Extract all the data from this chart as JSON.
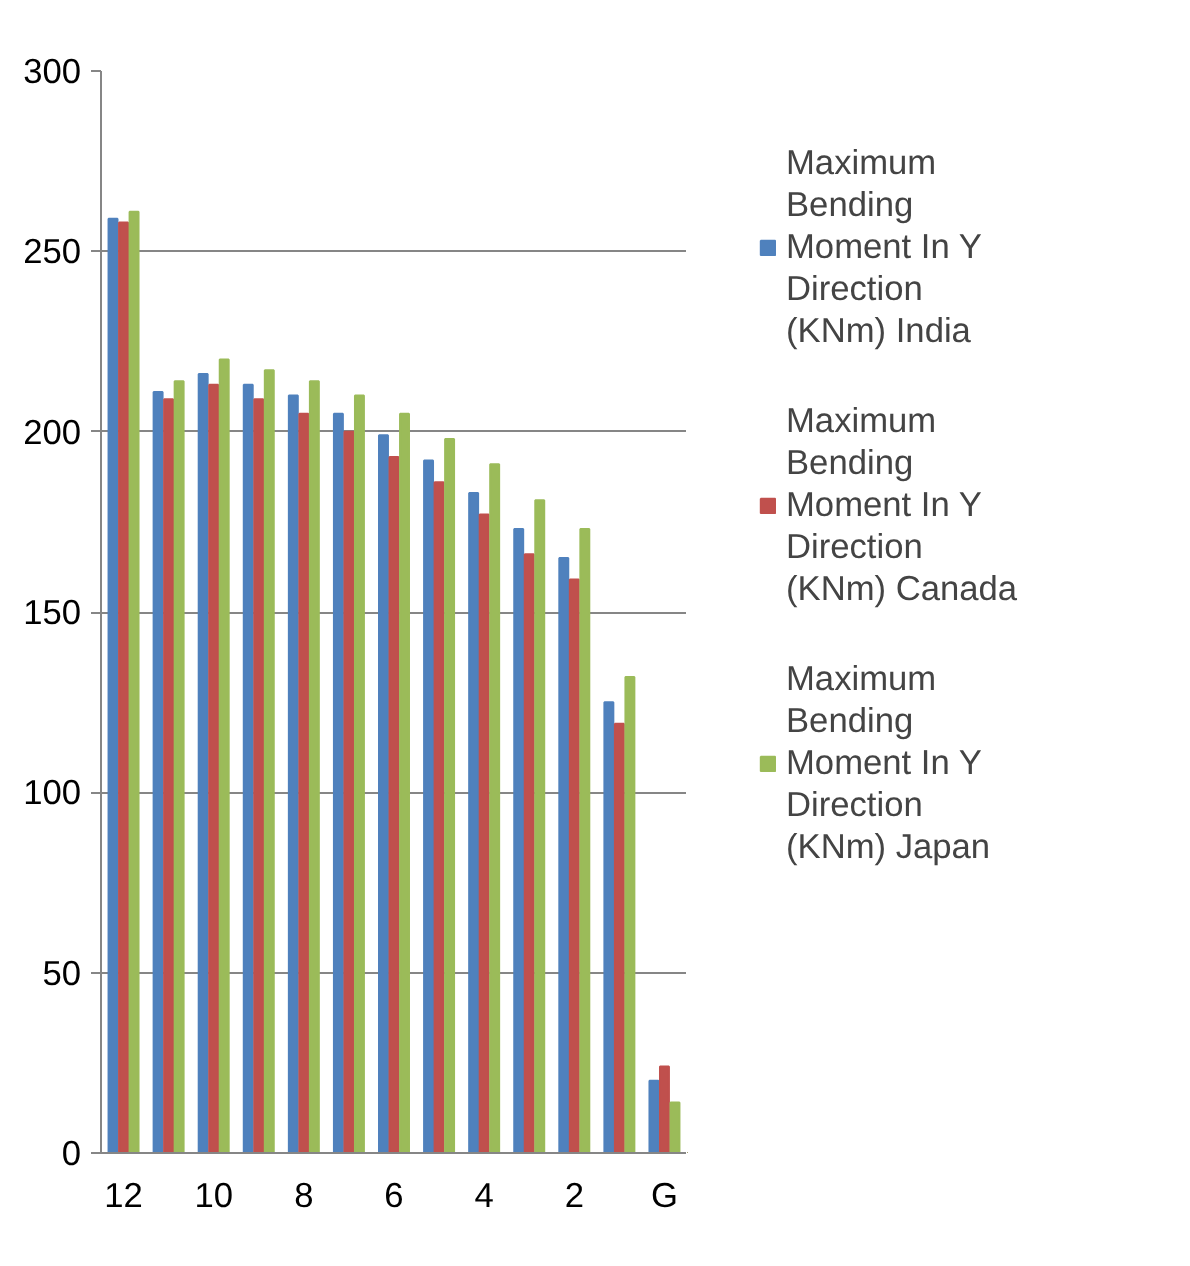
{
  "chart_data": {
    "type": "bar",
    "categories": [
      "12",
      null,
      "10",
      null,
      "8",
      null,
      "6",
      null,
      "4",
      null,
      "2",
      null,
      "G"
    ],
    "series": [
      {
        "name": "Maximum Bending Moment In Y Direction (KNm) India",
        "color": "#4f81bd",
        "values": [
          259,
          211,
          216,
          213,
          210,
          205,
          199,
          192,
          183,
          173,
          165,
          125,
          20
        ]
      },
      {
        "name": "Maximum Bending Moment In Y Direction (KNm) Canada",
        "color": "#c0504d",
        "values": [
          258,
          209,
          213,
          209,
          205,
          200,
          193,
          186,
          177,
          166,
          159,
          119,
          24
        ]
      },
      {
        "name": "Maximum Bending Moment In Y Direction (KNm) Japan",
        "color": "#9bbb59",
        "values": [
          261,
          214,
          220,
          217,
          214,
          210,
          205,
          198,
          191,
          181,
          173,
          132,
          14
        ]
      }
    ],
    "ylim": [
      0,
      300
    ],
    "yticks": [
      0,
      50,
      100,
      150,
      200,
      250,
      300
    ],
    "grid": "y",
    "legend": "right"
  }
}
